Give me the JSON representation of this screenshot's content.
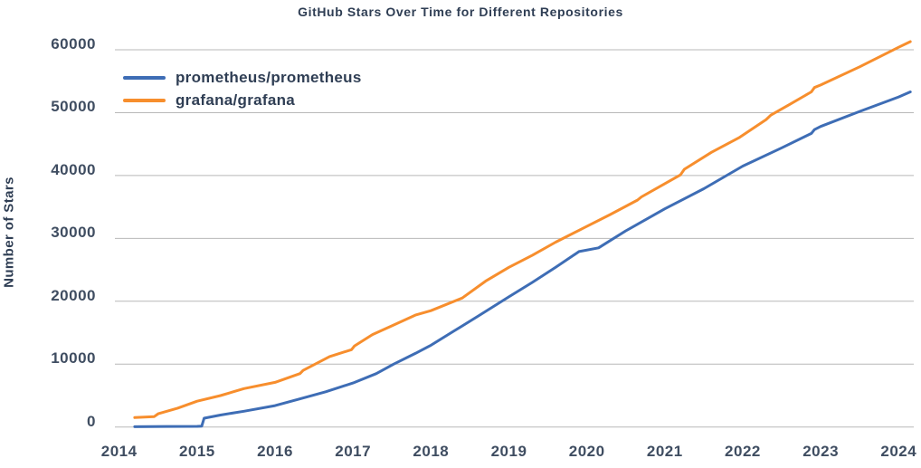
{
  "chart_data": {
    "type": "line",
    "title": "GitHub Stars Over Time for Different Repositories",
    "xlabel": "",
    "ylabel": "Number of Stars",
    "x_ticks": [
      2014,
      2015,
      2016,
      2017,
      2018,
      2019,
      2020,
      2021,
      2022,
      2023,
      2024
    ],
    "y_ticks": [
      0,
      10000,
      20000,
      30000,
      40000,
      50000,
      60000
    ],
    "xlim": [
      2013.95,
      2024.35
    ],
    "ylim": [
      0,
      60000
    ],
    "grid": "horizontal-only",
    "grid_color": "#b8b8b8",
    "background_color": "#ffffff",
    "text_color": "#2f3e54",
    "legend_position": "upper-left",
    "series": [
      {
        "name": "prometheus/prometheus",
        "color": "#3e6db5",
        "points": [
          [
            2014.2,
            50
          ],
          [
            2014.6,
            80
          ],
          [
            2015.0,
            100
          ],
          [
            2015.06,
            150
          ],
          [
            2015.09,
            1400
          ],
          [
            2015.3,
            1900
          ],
          [
            2015.6,
            2500
          ],
          [
            2016.0,
            3400
          ],
          [
            2016.3,
            4400
          ],
          [
            2016.65,
            5600
          ],
          [
            2017.0,
            7000
          ],
          [
            2017.3,
            8500
          ],
          [
            2017.52,
            10000
          ],
          [
            2017.8,
            11700
          ],
          [
            2018.0,
            13000
          ],
          [
            2018.3,
            15300
          ],
          [
            2018.6,
            17600
          ],
          [
            2019.0,
            20700
          ],
          [
            2019.3,
            23000
          ],
          [
            2019.6,
            25400
          ],
          [
            2019.9,
            27900
          ],
          [
            2020.15,
            28500
          ],
          [
            2020.5,
            31200
          ],
          [
            2021.0,
            34700
          ],
          [
            2021.5,
            37900
          ],
          [
            2022.0,
            41500
          ],
          [
            2022.5,
            44400
          ],
          [
            2022.88,
            46700
          ],
          [
            2022.92,
            47300
          ],
          [
            2023.0,
            47800
          ],
          [
            2023.5,
            50200
          ],
          [
            2024.0,
            52500
          ],
          [
            2024.15,
            53300
          ]
        ]
      },
      {
        "name": "grafana/grafana",
        "color": "#f78e2d",
        "points": [
          [
            2014.2,
            1500
          ],
          [
            2014.45,
            1650
          ],
          [
            2014.5,
            2100
          ],
          [
            2014.75,
            3000
          ],
          [
            2015.0,
            4100
          ],
          [
            2015.3,
            5000
          ],
          [
            2015.6,
            6100
          ],
          [
            2016.0,
            7100
          ],
          [
            2016.32,
            8500
          ],
          [
            2016.36,
            9000
          ],
          [
            2016.7,
            11200
          ],
          [
            2016.98,
            12300
          ],
          [
            2017.02,
            12900
          ],
          [
            2017.25,
            14700
          ],
          [
            2017.5,
            16100
          ],
          [
            2017.8,
            17800
          ],
          [
            2018.0,
            18500
          ],
          [
            2018.4,
            20500
          ],
          [
            2018.7,
            23200
          ],
          [
            2019.0,
            25400
          ],
          [
            2019.3,
            27300
          ],
          [
            2019.6,
            29400
          ],
          [
            2019.95,
            31600
          ],
          [
            2020.3,
            33800
          ],
          [
            2020.65,
            36100
          ],
          [
            2020.7,
            36600
          ],
          [
            2021.0,
            38700
          ],
          [
            2021.2,
            40100
          ],
          [
            2021.25,
            41000
          ],
          [
            2021.6,
            43700
          ],
          [
            2021.95,
            46000
          ],
          [
            2022.3,
            48900
          ],
          [
            2022.36,
            49600
          ],
          [
            2022.6,
            51300
          ],
          [
            2022.88,
            53300
          ],
          [
            2022.92,
            54000
          ],
          [
            2023.0,
            54400
          ],
          [
            2023.5,
            57300
          ],
          [
            2024.0,
            60400
          ],
          [
            2024.15,
            61300
          ]
        ]
      }
    ]
  }
}
